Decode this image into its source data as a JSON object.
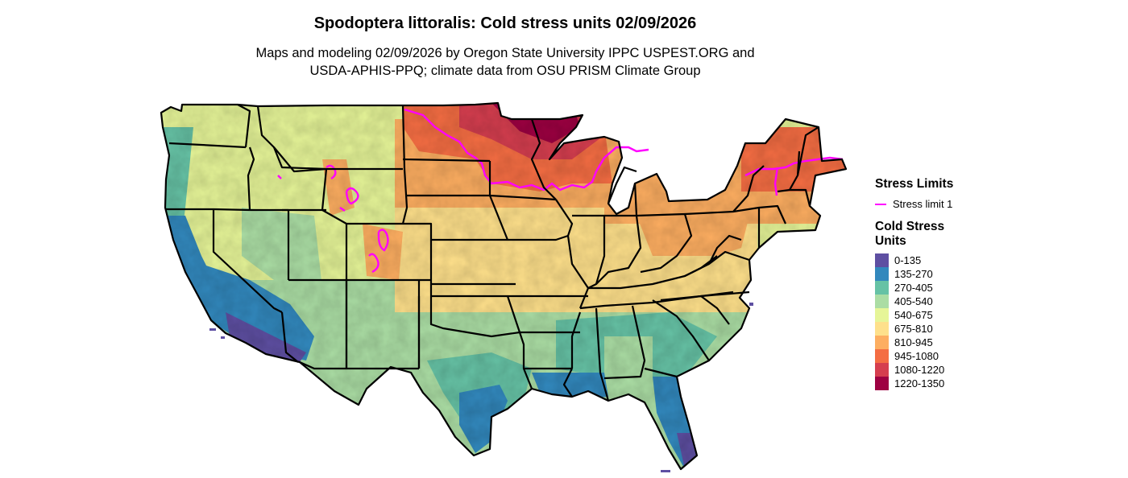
{
  "title": "Spodoptera littoralis: Cold stress units 02/09/2026",
  "subtitle_line1": "Maps and modeling 02/09/2026 by Oregon State University IPPC USPEST.ORG and",
  "subtitle_line2": "USDA-APHIS-PPQ; climate data from OSU PRISM Climate Group",
  "legend": {
    "stress_title": "Stress Limits",
    "stress_item": "Stress limit 1",
    "stress_color": "#ff00ff",
    "units_title_line1": "Cold Stress",
    "units_title_line2": "Units",
    "bins": [
      {
        "label": "0-135",
        "color": "#5e4fa2"
      },
      {
        "label": "135-270",
        "color": "#3288bd"
      },
      {
        "label": "270-405",
        "color": "#66c2a5"
      },
      {
        "label": "405-540",
        "color": "#abdda4"
      },
      {
        "label": "540-675",
        "color": "#e6f598"
      },
      {
        "label": "675-810",
        "color": "#fee08b"
      },
      {
        "label": "810-945",
        "color": "#fdae61"
      },
      {
        "label": "945-1080",
        "color": "#f46d43"
      },
      {
        "label": "1080-1220",
        "color": "#d53e4f"
      },
      {
        "label": "1220-1350",
        "color": "#9e0142"
      }
    ]
  }
}
